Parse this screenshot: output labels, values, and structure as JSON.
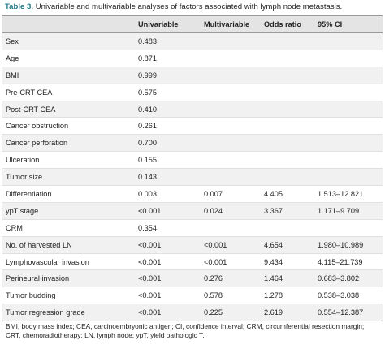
{
  "table": {
    "caption_label": "Table 3.",
    "caption_text": "Univariable and multivariable analyses of factors associated with lymph node metastasis.",
    "header": [
      "Univariable",
      "Multivariable",
      "Odds ratio",
      "95% CI"
    ],
    "rows": [
      [
        "Sex",
        "0.483",
        null,
        null,
        null
      ],
      [
        "Age",
        "0.871",
        null,
        null,
        null
      ],
      [
        "BMI",
        "0.999",
        null,
        null,
        null
      ],
      [
        "Pre-CRT CEA",
        "0.575",
        null,
        null,
        null
      ],
      [
        "Post-CRT CEA",
        "0.410",
        null,
        null,
        null
      ],
      [
        "Cancer obstruction",
        "0.261",
        null,
        null,
        null
      ],
      [
        "Cancer perforation",
        "0.700",
        null,
        null,
        null
      ],
      [
        "Ulceration",
        "0.155",
        null,
        null,
        null
      ],
      [
        "Tumor size",
        "0.143",
        null,
        null,
        null
      ],
      [
        "Differentiation",
        "0.003",
        "0.007",
        "4.405",
        "1.513–12.821"
      ],
      [
        "ypT stage",
        "<0.001",
        "0.024",
        "3.367",
        "1.171–9.709"
      ],
      [
        "CRM",
        "0.354",
        null,
        null,
        null
      ],
      [
        "No. of harvested LN",
        "<0.001",
        "<0.001",
        "4.654",
        "1.980–10.989"
      ],
      [
        "Lymphovascular invasion",
        "<0.001",
        "<0.001",
        "9.434",
        "4.115–21.739"
      ],
      [
        "Perineural invasion",
        "<0.001",
        "0.276",
        "1.464",
        "0.683–3.802"
      ],
      [
        "Tumor budding",
        "<0.001",
        "0.578",
        "1.278",
        "0.538–3.038"
      ],
      [
        "Tumor regression grade",
        "<0.001",
        "0.225",
        "2.619",
        "0.554–12.387"
      ]
    ],
    "footnote": "BMI, body mass index; CEA, carcinoembryonic antigen; CI, confidence interval; CRM, circumferential resection margin; CRT, chemoradiotherapy; LN, lymph node; ypT, yield pathologic T."
  }
}
